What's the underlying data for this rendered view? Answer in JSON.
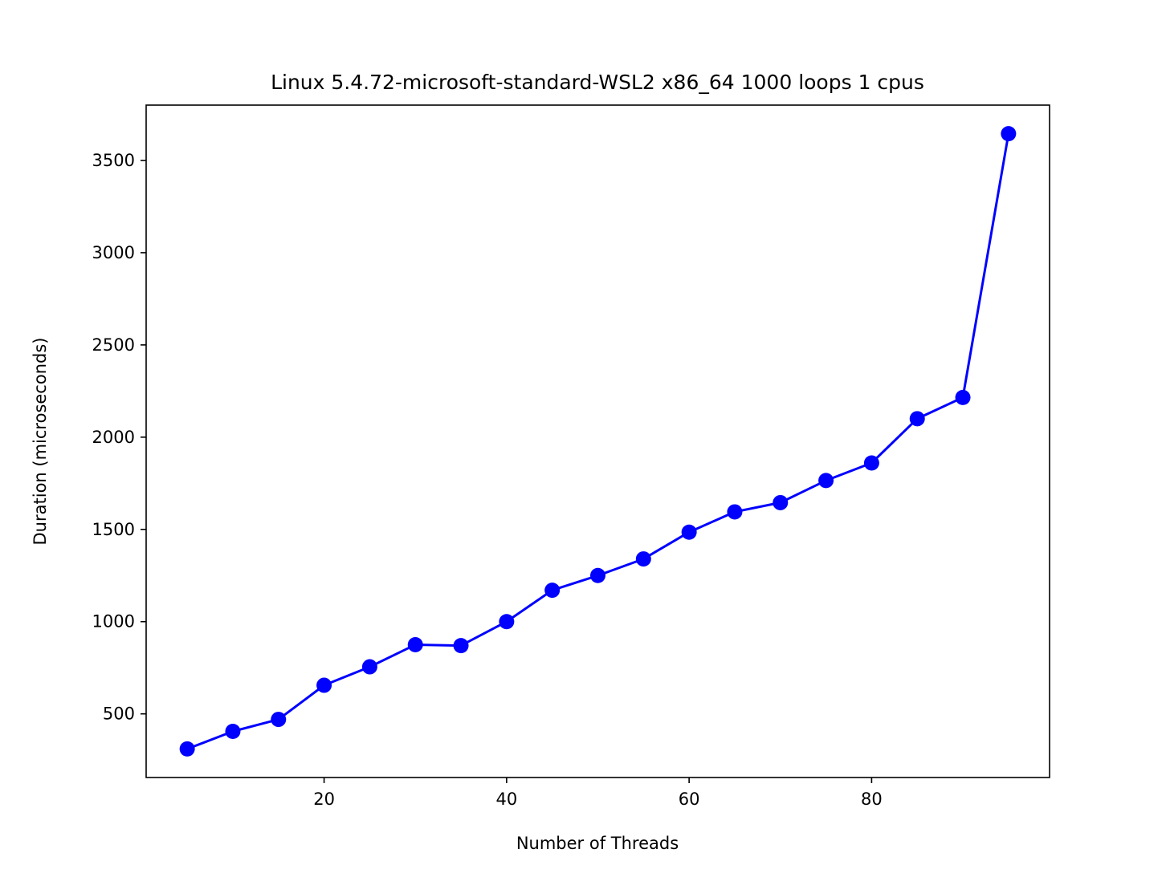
{
  "chart_data": {
    "type": "line",
    "title": "Linux 5.4.72-microsoft-standard-WSL2 x86_64 1000 loops 1 cpus",
    "xlabel": "Number of Threads",
    "ylabel": "Duration (microseconds)",
    "xlim": [
      0.5,
      99.5
    ],
    "ylim": [
      155,
      3800
    ],
    "xticks": [
      20,
      40,
      60,
      80
    ],
    "yticks": [
      500,
      1000,
      1500,
      2000,
      2500,
      3000,
      3500
    ],
    "grid": false,
    "legend": "none",
    "series": [
      {
        "color": "#0000ff",
        "marker": "circle",
        "x": [
          5,
          10,
          15,
          20,
          25,
          30,
          35,
          40,
          45,
          50,
          55,
          60,
          65,
          70,
          75,
          80,
          85,
          90,
          95
        ],
        "y": [
          310,
          405,
          470,
          655,
          755,
          875,
          870,
          1000,
          1170,
          1250,
          1340,
          1485,
          1595,
          1645,
          1765,
          1860,
          2100,
          2215,
          3645
        ]
      }
    ]
  }
}
